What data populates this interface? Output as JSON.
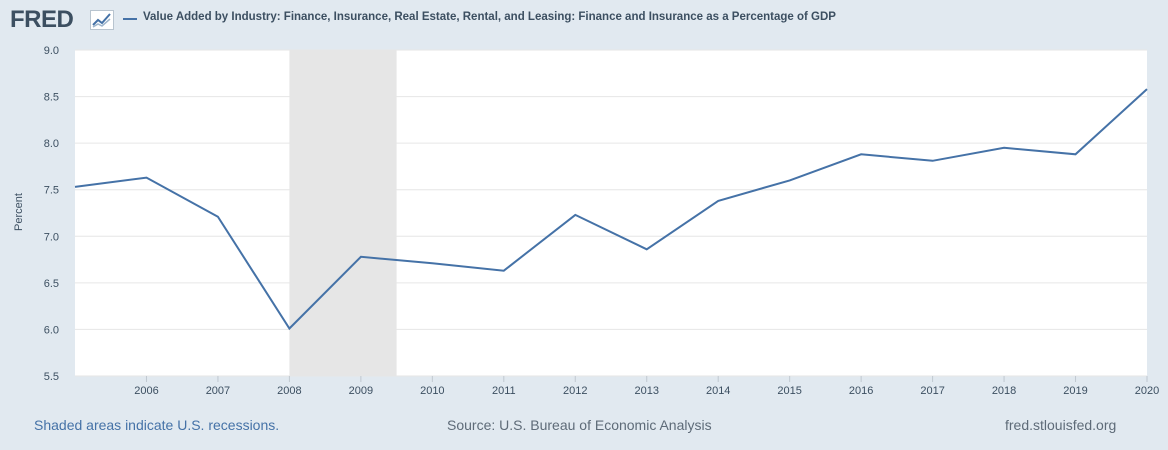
{
  "header": {
    "logo": "FRED",
    "logo_icon": "line-chart-icon",
    "series_title": "Value Added by Industry: Finance, Insurance, Real Estate, Rental, and Leasing: Finance and Insurance as a Percentage of GDP"
  },
  "footer": {
    "recession_note": "Shaded areas indicate U.S. recessions.",
    "source": "Source: U.S. Bureau of Economic Analysis",
    "site": "fred.stlouisfed.org"
  },
  "colors": {
    "series": "#4572a7",
    "recession": "#e6e6e6",
    "background": "#e1e9f0"
  },
  "chart_data": {
    "type": "line",
    "ylabel": "Percent",
    "xlabel": "",
    "ylim": [
      5.5,
      9.0
    ],
    "yticks": [
      "5.5",
      "6.0",
      "6.5",
      "7.0",
      "7.5",
      "8.0",
      "8.5",
      "9.0"
    ],
    "xlim": [
      2005,
      2020
    ],
    "xticks": [
      "2006",
      "2007",
      "2008",
      "2009",
      "2010",
      "2011",
      "2012",
      "2013",
      "2014",
      "2015",
      "2016",
      "2017",
      "2018",
      "2019",
      "2020"
    ],
    "grid": true,
    "recession": [
      2008.0,
      2009.5
    ],
    "series": [
      {
        "x": [
          2005,
          2006,
          2007,
          2008,
          2009,
          2010,
          2011,
          2012,
          2013,
          2014,
          2015,
          2016,
          2017,
          2018,
          2019,
          2020
        ],
        "values": [
          7.53,
          7.63,
          7.21,
          6.01,
          6.78,
          6.71,
          6.63,
          7.23,
          6.86,
          7.38,
          7.6,
          7.88,
          7.81,
          7.95,
          7.88,
          8.58
        ]
      }
    ]
  }
}
